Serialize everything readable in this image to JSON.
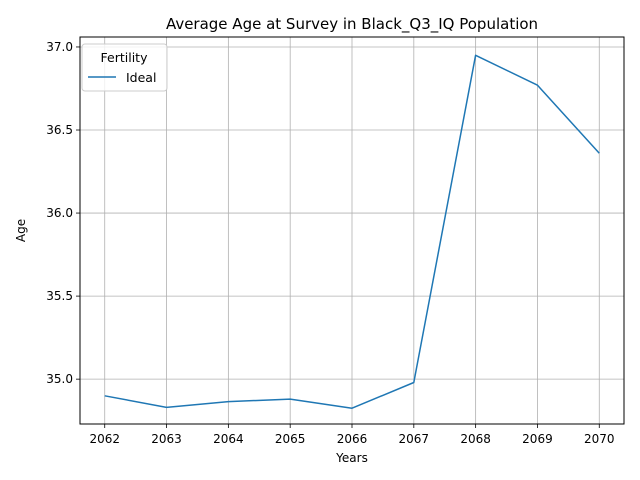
{
  "chart_data": {
    "type": "line",
    "title": "Average Age at Survey in Black_Q3_IQ Population",
    "xlabel": "Years",
    "ylabel": "Age",
    "x": [
      2062,
      2063,
      2064,
      2065,
      2066,
      2067,
      2068,
      2069,
      2070
    ],
    "x_tick_labels": [
      "2062",
      "2063",
      "2064",
      "2065",
      "2066",
      "2067",
      "2068",
      "2069",
      "2070"
    ],
    "y_ticks": [
      35.0,
      35.5,
      36.0,
      36.5,
      37.0
    ],
    "y_tick_labels": [
      "35.0",
      "35.5",
      "36.0",
      "36.5",
      "37.0"
    ],
    "ylim": [
      34.73,
      37.06
    ],
    "xlim": [
      2061.6,
      2070.4
    ],
    "grid": true,
    "legend": {
      "title": "Fertility",
      "placement": "upper-left"
    },
    "series": [
      {
        "name": "Ideal",
        "color": "#1f77b4",
        "values": [
          34.9,
          34.83,
          34.865,
          34.88,
          34.825,
          34.98,
          36.95,
          36.77,
          36.36
        ]
      }
    ]
  }
}
